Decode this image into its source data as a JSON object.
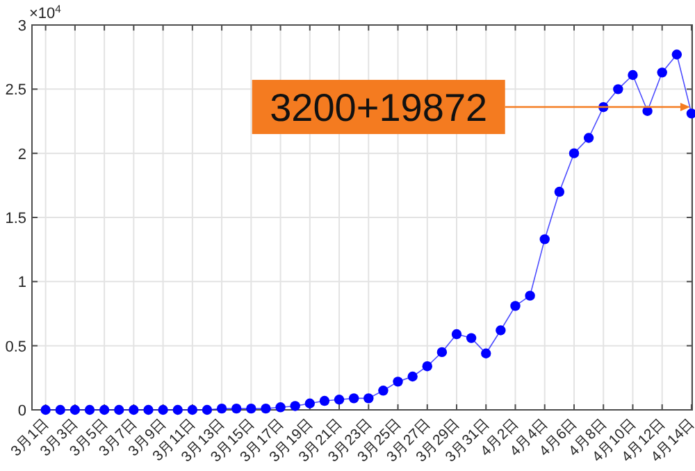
{
  "chart_data": {
    "type": "line",
    "categories": [
      "3月1日",
      null,
      "3月3日",
      null,
      "3月5日",
      null,
      "3月7日",
      null,
      "3月9日",
      null,
      "3月11日",
      null,
      "3月13日",
      null,
      "3月15日",
      null,
      "3月17日",
      null,
      "3月19日",
      null,
      "3月21日",
      null,
      "3月23日",
      null,
      "3月25日",
      null,
      "3月27日",
      null,
      "3月29日",
      null,
      "3月31日",
      null,
      "4月2日",
      null,
      "4月4日",
      null,
      "4月6日",
      null,
      "4月8日",
      null,
      "4月10日",
      null,
      "4月12日",
      null,
      "4月14日"
    ],
    "series": [
      {
        "color": "#0000ff",
        "values": [
          0,
          0,
          0,
          0,
          0,
          0,
          0,
          0,
          0,
          0,
          0,
          0,
          0.01,
          0.01,
          0.01,
          0.01,
          0.02,
          0.03,
          0.05,
          0.07,
          0.08,
          0.09,
          0.09,
          0.15,
          0.22,
          0.26,
          0.34,
          0.45,
          0.59,
          0.56,
          0.44,
          0.62,
          0.81,
          0.89,
          1.33,
          1.7,
          2.0,
          2.12,
          2.36,
          2.5,
          2.61,
          2.33,
          2.63,
          2.77,
          2.31
        ]
      }
    ],
    "ylim": [
      0,
      3
    ],
    "yticks": [
      0,
      0.5,
      1,
      1.5,
      2,
      2.5,
      3
    ],
    "grid": true,
    "marker": "circle",
    "line_style": "solid",
    "annotations": [
      "×10$^{4}$",
      {
        "text": "3200+19872",
        "x": "4月14日",
        "y": 2.3072
      }
    ]
  }
}
